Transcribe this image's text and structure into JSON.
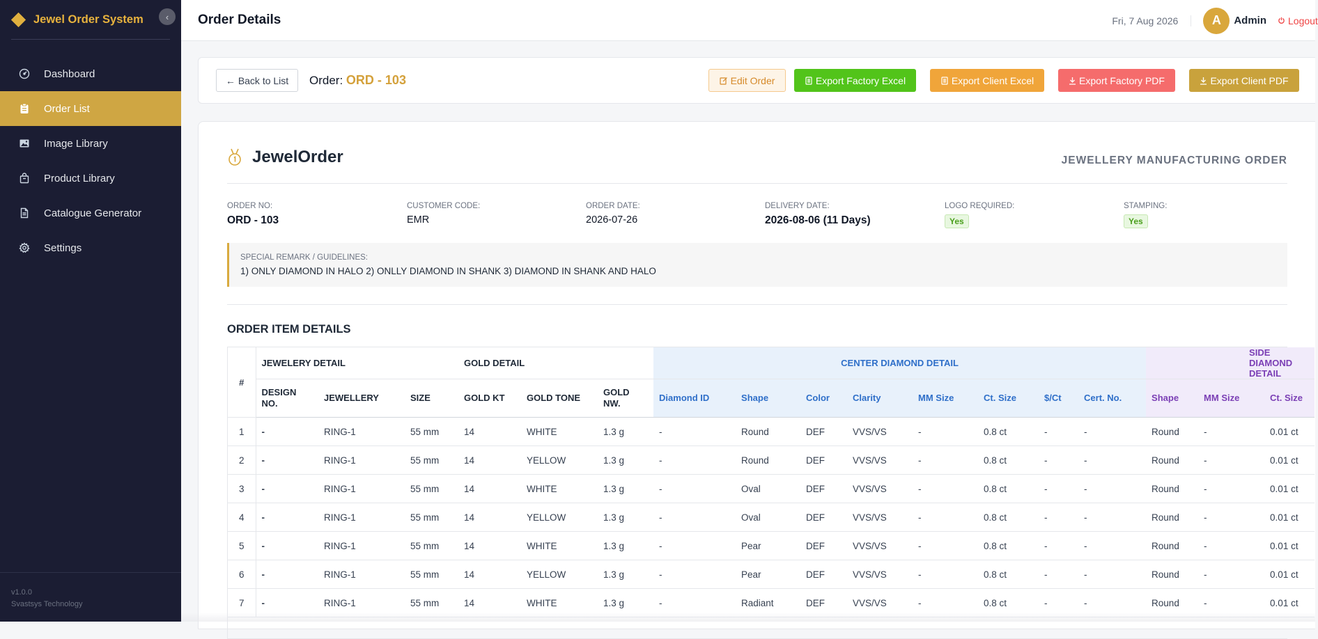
{
  "app": {
    "title": "Jewel Order System",
    "version": "v1.0.0",
    "company": "Svastsys Technology"
  },
  "sidebar": {
    "items": [
      {
        "label": "Dashboard",
        "icon": "dashboard-icon"
      },
      {
        "label": "Order List",
        "icon": "clipboard-icon",
        "active": true
      },
      {
        "label": "Image Library",
        "icon": "image-icon"
      },
      {
        "label": "Product Library",
        "icon": "bag-icon"
      },
      {
        "label": "Catalogue Generator",
        "icon": "document-icon"
      },
      {
        "label": "Settings",
        "icon": "gear-icon"
      }
    ]
  },
  "header": {
    "title": "Order Details",
    "date": "Fri, 7 Aug 2026",
    "avatar_letter": "A",
    "user": "Admin",
    "logout": "Logout"
  },
  "actions": {
    "back": "Back to List",
    "order_prefix": "Order:",
    "order_no": "ORD - 103",
    "edit": "Edit Order",
    "export_factory_excel": "Export Factory Excel",
    "export_client_excel": "Export Client Excel",
    "export_factory_pdf": "Export Factory PDF",
    "export_client_pdf": "Export Client PDF"
  },
  "doc": {
    "brand": "JewelOrder",
    "kind": "JEWELLERY MANUFACTURING ORDER",
    "meta": {
      "order_no_label": "ORDER NO:",
      "order_no": "ORD - 103",
      "customer_label": "CUSTOMER CODE:",
      "customer": "EMR",
      "order_date_label": "ORDER DATE:",
      "order_date": "2026-07-26",
      "delivery_label": "DELIVERY DATE:",
      "delivery": "2026-08-06 (11 Days)",
      "logo_label": "LOGO REQUIRED:",
      "logo": "Yes",
      "stamping_label": "STAMPING:",
      "stamping": "Yes"
    },
    "remark_label": "SPECIAL REMARK / GUIDELINES:",
    "remark": "1) ONLY DIAMOND IN HALO 2) ONLLY DIAMOND IN SHANK 3) DIAMOND IN SHANK AND HALO",
    "section_title": "ORDER ITEM DETAILS"
  },
  "table": {
    "groups": {
      "hash": "#",
      "jewelery": "JEWELERY DETAIL",
      "gold": "GOLD DETAIL",
      "center": "CENTER DIAMOND DETAIL",
      "side": "SIDE DIAMOND DETAIL"
    },
    "columns": {
      "design": "DESIGN NO.",
      "jewellery": "JEWELLERY",
      "size": "SIZE",
      "gold_kt": "GOLD KT",
      "gold_tone": "GOLD TONE",
      "gold_nw": "GOLD NW.",
      "c_id": "Diamond ID",
      "c_shape": "Shape",
      "c_color": "Color",
      "c_clarity": "Clarity",
      "c_mm": "MM Size",
      "c_ct": "Ct. Size",
      "c_price": "$/Ct",
      "c_cert": "Cert. No.",
      "s_shape": "Shape",
      "s_mm": "MM Size",
      "s_ct": "Ct. Size"
    },
    "rows": [
      {
        "n": "1",
        "design": "-",
        "jewellery": "RING-1",
        "size": "55 mm",
        "kt": "14",
        "tone": "WHITE",
        "nw": "1.3 g",
        "cid": "-",
        "shape": "Round",
        "color": "DEF",
        "clarity": "VVS/VS",
        "mm": "-",
        "ct": "0.8 ct",
        "price": "-",
        "cert": "-",
        "sshape": "Round",
        "smm": "-",
        "sct": "0.01 ct"
      },
      {
        "n": "2",
        "design": "-",
        "jewellery": "RING-1",
        "size": "55 mm",
        "kt": "14",
        "tone": "YELLOW",
        "nw": "1.3 g",
        "cid": "-",
        "shape": "Round",
        "color": "DEF",
        "clarity": "VVS/VS",
        "mm": "-",
        "ct": "0.8 ct",
        "price": "-",
        "cert": "-",
        "sshape": "Round",
        "smm": "-",
        "sct": "0.01 ct"
      },
      {
        "n": "3",
        "design": "-",
        "jewellery": "RING-1",
        "size": "55 mm",
        "kt": "14",
        "tone": "WHITE",
        "nw": "1.3 g",
        "cid": "-",
        "shape": "Oval",
        "color": "DEF",
        "clarity": "VVS/VS",
        "mm": "-",
        "ct": "0.8 ct",
        "price": "-",
        "cert": "-",
        "sshape": "Round",
        "smm": "-",
        "sct": "0.01 ct"
      },
      {
        "n": "4",
        "design": "-",
        "jewellery": "RING-1",
        "size": "55 mm",
        "kt": "14",
        "tone": "YELLOW",
        "nw": "1.3 g",
        "cid": "-",
        "shape": "Oval",
        "color": "DEF",
        "clarity": "VVS/VS",
        "mm": "-",
        "ct": "0.8 ct",
        "price": "-",
        "cert": "-",
        "sshape": "Round",
        "smm": "-",
        "sct": "0.01 ct"
      },
      {
        "n": "5",
        "design": "-",
        "jewellery": "RING-1",
        "size": "55 mm",
        "kt": "14",
        "tone": "WHITE",
        "nw": "1.3 g",
        "cid": "-",
        "shape": "Pear",
        "color": "DEF",
        "clarity": "VVS/VS",
        "mm": "-",
        "ct": "0.8 ct",
        "price": "-",
        "cert": "-",
        "sshape": "Round",
        "smm": "-",
        "sct": "0.01 ct"
      },
      {
        "n": "6",
        "design": "-",
        "jewellery": "RING-1",
        "size": "55 mm",
        "kt": "14",
        "tone": "YELLOW",
        "nw": "1.3 g",
        "cid": "-",
        "shape": "Pear",
        "color": "DEF",
        "clarity": "VVS/VS",
        "mm": "-",
        "ct": "0.8 ct",
        "price": "-",
        "cert": "-",
        "sshape": "Round",
        "smm": "-",
        "sct": "0.01 ct"
      },
      {
        "n": "7",
        "design": "-",
        "jewellery": "RING-1",
        "size": "55 mm",
        "kt": "14",
        "tone": "WHITE",
        "nw": "1.3 g",
        "cid": "-",
        "shape": "Radiant",
        "color": "DEF",
        "clarity": "VVS/VS",
        "mm": "-",
        "ct": "0.8 ct",
        "price": "-",
        "cert": "-",
        "sshape": "Round",
        "smm": "-",
        "sct": "0.01 ct"
      }
    ]
  },
  "colors": {
    "sidebar_bg": "#1b1d33",
    "accent_gold": "#cfa643",
    "center_header": "#e8f1fb",
    "side_header": "#f1ebfa"
  }
}
